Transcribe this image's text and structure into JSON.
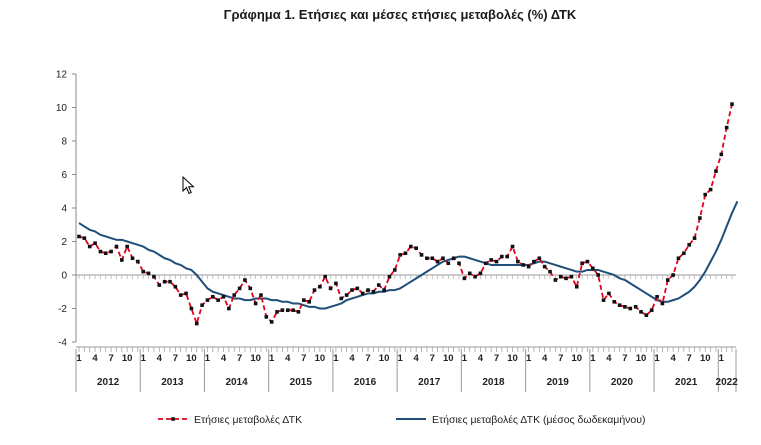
{
  "chart_data": {
    "type": "line",
    "title": "Γράφημα 1. Ετήσιες και μέσες ετήσιες μεταβολές (%) ΔΤΚ",
    "xlabel": "",
    "ylabel": "",
    "ylim": [
      -4,
      12
    ],
    "yticks": [
      12,
      10,
      8,
      6,
      4,
      2,
      0,
      -2,
      -4
    ],
    "grid": false,
    "legend_position": "bottom",
    "month_tick_labels": [
      "1",
      "4",
      "7",
      "10"
    ],
    "years": [
      "2012",
      "2013",
      "2014",
      "2015",
      "2016",
      "2017",
      "2018",
      "2019",
      "2020",
      "2021",
      "2022"
    ],
    "x_start": "2012-01",
    "x_end": "2022-04",
    "series": [
      {
        "name": "Ετήσιες μεταβολές ΔΤΚ",
        "color": "#e3001b",
        "style": "dashed-with-square-markers",
        "values": [
          2.3,
          2.2,
          1.7,
          1.9,
          1.4,
          1.3,
          1.4,
          1.7,
          0.9,
          1.7,
          1.0,
          0.8,
          0.2,
          0.1,
          -0.1,
          -0.6,
          -0.4,
          -0.4,
          -0.7,
          -1.2,
          -1.1,
          -2.0,
          -2.9,
          -1.8,
          -1.5,
          -1.3,
          -1.5,
          -1.3,
          -2.0,
          -1.2,
          -0.8,
          -0.3,
          -0.8,
          -1.7,
          -1.2,
          -2.5,
          -2.8,
          -2.2,
          -2.1,
          -2.1,
          -2.1,
          -2.2,
          -1.5,
          -1.6,
          -0.9,
          -0.7,
          -0.1,
          -0.8,
          -0.5,
          -1.4,
          -1.2,
          -0.9,
          -0.8,
          -1.1,
          -0.9,
          -1.0,
          -0.6,
          -0.9,
          -0.1,
          0.3,
          1.2,
          1.3,
          1.7,
          1.6,
          1.2,
          1.0,
          1.0,
          0.8,
          1.0,
          0.7,
          1.0,
          0.7,
          -0.2,
          0.1,
          -0.1,
          0.1,
          0.7,
          0.9,
          0.8,
          1.1,
          1.1,
          1.7,
          0.8,
          0.6,
          0.5,
          0.8,
          1.0,
          0.5,
          0.2,
          -0.3,
          -0.1,
          -0.2,
          -0.1,
          -0.7,
          0.7,
          0.8,
          0.4,
          0.0,
          -1.5,
          -1.1,
          -1.6,
          -1.8,
          -1.9,
          -2.0,
          -1.9,
          -2.2,
          -2.4,
          -2.1,
          -1.3,
          -1.7,
          -0.3,
          0.0,
          1.0,
          1.3,
          1.8,
          2.2,
          3.4,
          4.8,
          5.1,
          6.2,
          7.2,
          8.8,
          10.2
        ]
      },
      {
        "name": "Ετήσιες μεταβολές ΔΤΚ (μέσος δωδεκαμήνου)",
        "color": "#1f4e79",
        "style": "solid",
        "values": [
          3.1,
          2.9,
          2.7,
          2.6,
          2.4,
          2.3,
          2.2,
          2.1,
          2.1,
          2.0,
          1.9,
          1.8,
          1.7,
          1.5,
          1.4,
          1.2,
          1.0,
          0.9,
          0.7,
          0.6,
          0.4,
          0.3,
          0.0,
          -0.4,
          -0.8,
          -1.0,
          -1.1,
          -1.2,
          -1.3,
          -1.4,
          -1.4,
          -1.5,
          -1.5,
          -1.4,
          -1.4,
          -1.4,
          -1.5,
          -1.5,
          -1.6,
          -1.6,
          -1.7,
          -1.7,
          -1.8,
          -1.9,
          -1.9,
          -2.0,
          -2.0,
          -1.9,
          -1.8,
          -1.7,
          -1.5,
          -1.4,
          -1.3,
          -1.2,
          -1.1,
          -1.1,
          -1.0,
          -1.0,
          -0.9,
          -0.9,
          -0.8,
          -0.6,
          -0.4,
          -0.2,
          0.0,
          0.2,
          0.4,
          0.6,
          0.8,
          0.9,
          1.0,
          1.1,
          1.1,
          1.0,
          0.9,
          0.8,
          0.7,
          0.6,
          0.6,
          0.6,
          0.6,
          0.6,
          0.6,
          0.6,
          0.6,
          0.7,
          0.8,
          0.8,
          0.7,
          0.6,
          0.5,
          0.4,
          0.3,
          0.2,
          0.2,
          0.3,
          0.3,
          0.3,
          0.2,
          0.1,
          0.0,
          -0.2,
          -0.3,
          -0.5,
          -0.7,
          -0.9,
          -1.1,
          -1.3,
          -1.5,
          -1.6,
          -1.6,
          -1.5,
          -1.4,
          -1.2,
          -1.0,
          -0.7,
          -0.3,
          0.2,
          0.8,
          1.4,
          2.1,
          2.9,
          3.7,
          4.4
        ]
      }
    ]
  }
}
